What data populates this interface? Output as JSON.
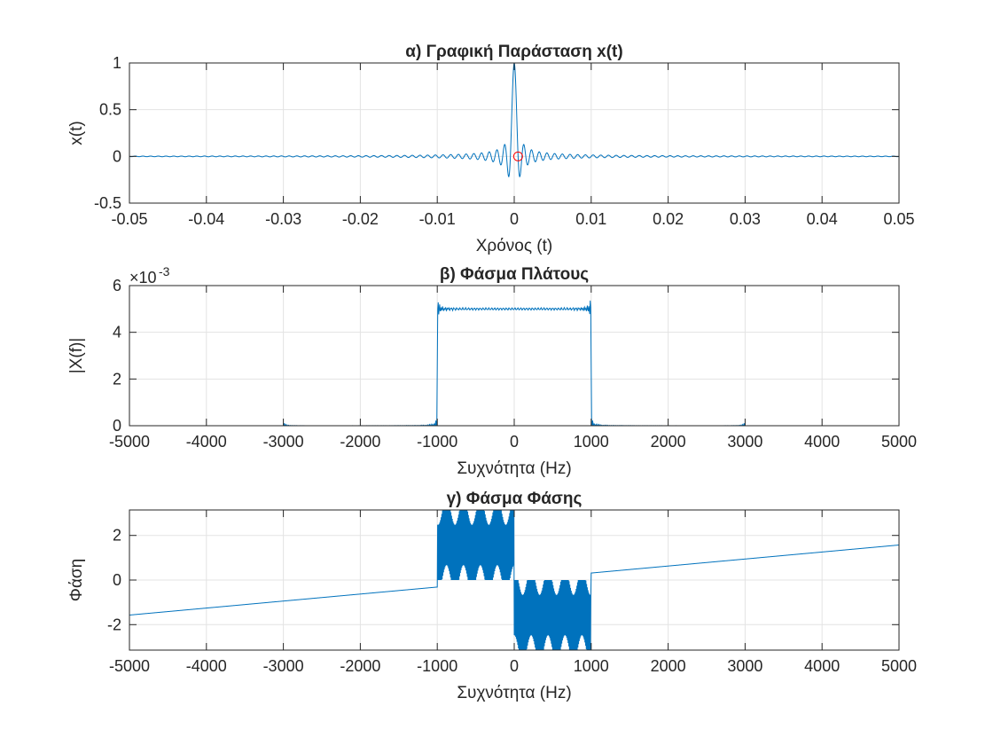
{
  "colors": {
    "line": "#0072BD",
    "marker": "#FF0000",
    "grid": "#E3E3E3",
    "axes": "#262626"
  },
  "chart_data": [
    {
      "type": "line",
      "title": "α) Γραφική Παράσταση x(t)",
      "xlabel": "Χρόνος (t)",
      "ylabel": "x(t)",
      "xlim": [
        -0.05,
        0.05
      ],
      "ylim": [
        -0.5,
        1
      ],
      "xticks": [
        -0.05,
        -0.04,
        -0.03,
        -0.02,
        -0.01,
        0,
        0.01,
        0.02,
        0.03,
        0.04,
        0.05
      ],
      "xtick_labels": [
        "-0.05",
        "-0.04",
        "-0.03",
        "-0.02",
        "-0.01",
        "0",
        "0.01",
        "0.02",
        "0.03",
        "0.04",
        "0.05"
      ],
      "yticks": [
        -0.5,
        0,
        0.5,
        1
      ],
      "ytick_labels": [
        "-0.5",
        "0",
        "0.5",
        "1"
      ],
      "grid": true,
      "series": [
        {
          "description": "sinc pulse, peak 1 at t=0, side lobes about -0.21 at t=±0.0007"
        }
      ],
      "markers": [
        {
          "x": 0.0005,
          "y": 0,
          "shape": "circle"
        }
      ]
    },
    {
      "type": "line",
      "title": "β) Φάσμα Πλάτους",
      "xlabel": "Συχνότητα (Hz)",
      "ylabel": "|X(f)|",
      "exponent_label": "×10",
      "exponent_power": "-3",
      "xlim": [
        -5000,
        5000
      ],
      "ylim": [
        0,
        6
      ],
      "xticks": [
        -5000,
        -4000,
        -3000,
        -2000,
        -1000,
        0,
        1000,
        2000,
        3000,
        4000,
        5000
      ],
      "xtick_labels": [
        "-5000",
        "-4000",
        "-3000",
        "-2000",
        "-1000",
        "0",
        "1000",
        "2000",
        "3000",
        "4000",
        "5000"
      ],
      "yticks": [
        0,
        2,
        4,
        6
      ],
      "ytick_labels": [
        "0",
        "2",
        "4",
        "6"
      ],
      "grid": true,
      "series": [
        {
          "description": "rectangular magnitude spectrum, about 5 between -1000 and 1000 Hz with overshoot peaks about 5.4, near 0 elsewhere"
        }
      ]
    },
    {
      "type": "line",
      "title": "γ) Φάσμα Φάσης",
      "xlabel": "Συχνότητα (Hz)",
      "ylabel": "Φάση",
      "xlim": [
        -5000,
        5000
      ],
      "ylim": [
        -3.14159,
        3.14159
      ],
      "xticks": [
        -5000,
        -4000,
        -3000,
        -2000,
        -1000,
        0,
        1000,
        2000,
        3000,
        4000,
        5000
      ],
      "xtick_labels": [
        "-5000",
        "-4000",
        "-3000",
        "-2000",
        "-1000",
        "0",
        "1000",
        "2000",
        "3000",
        "4000",
        "5000"
      ],
      "yticks": [
        -2,
        0,
        2
      ],
      "ytick_labels": [
        "-2",
        "0",
        "2"
      ],
      "grid": true,
      "series": [
        {
          "description": "linear phase from -1.57 at -5000 Hz to 1.57 at 5000 Hz outside the band; rapid oscillation between 0 and pi on -1000..0 Hz and between -pi and 0 on 0..1000 Hz"
        }
      ]
    }
  ]
}
